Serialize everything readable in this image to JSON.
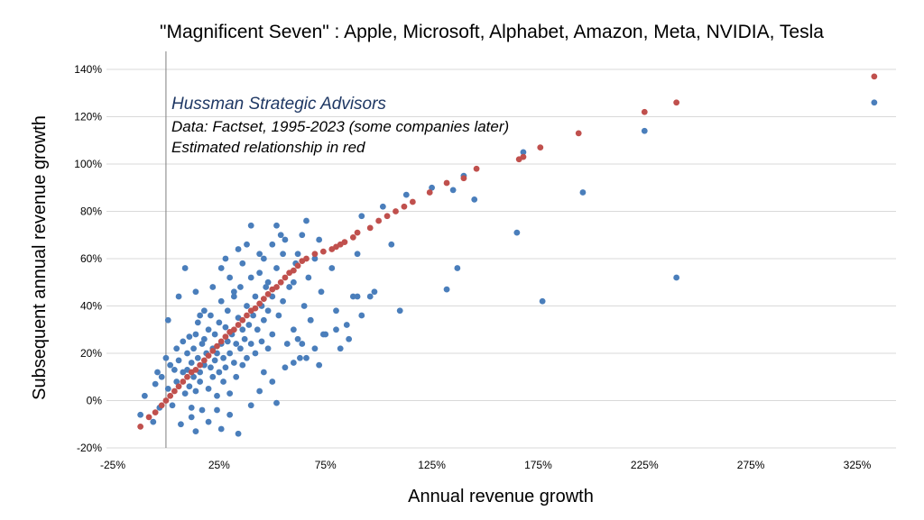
{
  "chart_data": {
    "type": "scatter",
    "title": "\"Magnificent Seven\" :  Apple, Microsoft, Alphabet, Amazon, Meta, NVIDIA, Tesla",
    "xlabel": "Annual revenue growth",
    "ylabel": "Subsequent annual revenue growth",
    "xlim": [
      -25,
      350
    ],
    "ylim": [
      -20,
      145
    ],
    "x_ticks": [
      -25,
      25,
      75,
      125,
      175,
      225,
      275,
      325
    ],
    "x_tick_labels": [
      "-25%",
      "25%",
      "75%",
      "125%",
      "175%",
      "225%",
      "275%",
      "325%"
    ],
    "y_ticks": [
      -20,
      0,
      20,
      40,
      60,
      80,
      100,
      120,
      140
    ],
    "y_tick_labels": [
      "-20%",
      "0%",
      "20%",
      "40%",
      "60%",
      "80%",
      "100%",
      "120%",
      "140%"
    ],
    "grid": "horizontal",
    "annotations": [
      "Hussman Strategic Advisors",
      "Data: Factset, 1995-2023 (some companies later)",
      "Estimated relationship in red"
    ],
    "colors": {
      "observed": "#4a7ebb",
      "estimated": "#c0504d"
    },
    "series": [
      {
        "points": [
          [
            -12,
            -6
          ],
          [
            -10,
            2
          ],
          [
            -6,
            -9
          ],
          [
            -5,
            7
          ],
          [
            -4,
            12
          ],
          [
            -3,
            -3
          ],
          [
            -2,
            10
          ],
          [
            0,
            18
          ],
          [
            1,
            5
          ],
          [
            2,
            15
          ],
          [
            3,
            -2
          ],
          [
            4,
            13
          ],
          [
            5,
            8
          ],
          [
            5,
            22
          ],
          [
            6,
            17
          ],
          [
            7,
            -10
          ],
          [
            8,
            12
          ],
          [
            8,
            25
          ],
          [
            9,
            3
          ],
          [
            10,
            20
          ],
          [
            10,
            13
          ],
          [
            11,
            6
          ],
          [
            11,
            27
          ],
          [
            12,
            16
          ],
          [
            12,
            -3
          ],
          [
            13,
            10
          ],
          [
            13,
            22
          ],
          [
            14,
            4
          ],
          [
            14,
            28
          ],
          [
            15,
            18
          ],
          [
            15,
            33
          ],
          [
            16,
            12
          ],
          [
            16,
            8
          ],
          [
            17,
            24
          ],
          [
            17,
            -4
          ],
          [
            18,
            15
          ],
          [
            18,
            26
          ],
          [
            19,
            20
          ],
          [
            20,
            30
          ],
          [
            20,
            5
          ],
          [
            21,
            14
          ],
          [
            21,
            36
          ],
          [
            22,
            22
          ],
          [
            22,
            10
          ],
          [
            23,
            17
          ],
          [
            23,
            28
          ],
          [
            24,
            2
          ],
          [
            24,
            20
          ],
          [
            25,
            33
          ],
          [
            25,
            12
          ],
          [
            26,
            24
          ],
          [
            26,
            42
          ],
          [
            27,
            18
          ],
          [
            27,
            8
          ],
          [
            28,
            31
          ],
          [
            28,
            14
          ],
          [
            29,
            25
          ],
          [
            29,
            38
          ],
          [
            30,
            20
          ],
          [
            30,
            3
          ],
          [
            31,
            28
          ],
          [
            32,
            16
          ],
          [
            32,
            44
          ],
          [
            33,
            24
          ],
          [
            33,
            10
          ],
          [
            34,
            35
          ],
          [
            35,
            22
          ],
          [
            35,
            48
          ],
          [
            36,
            30
          ],
          [
            36,
            15
          ],
          [
            37,
            26
          ],
          [
            38,
            40
          ],
          [
            38,
            18
          ],
          [
            39,
            32
          ],
          [
            40,
            24
          ],
          [
            40,
            52
          ],
          [
            41,
            36
          ],
          [
            42,
            20
          ],
          [
            42,
            44
          ],
          [
            43,
            30
          ],
          [
            44,
            54
          ],
          [
            45,
            40
          ],
          [
            45,
            25
          ],
          [
            46,
            34
          ],
          [
            47,
            48
          ],
          [
            48,
            22
          ],
          [
            48,
            38
          ],
          [
            50,
            44
          ],
          [
            50,
            28
          ],
          [
            52,
            56
          ],
          [
            53,
            36
          ],
          [
            55,
            42
          ],
          [
            55,
            62
          ],
          [
            57,
            24
          ],
          [
            58,
            48
          ],
          [
            60,
            30
          ],
          [
            61,
            58
          ],
          [
            63,
            18
          ],
          [
            64,
            70
          ],
          [
            65,
            40
          ],
          [
            67,
            52
          ],
          [
            68,
            34
          ],
          [
            70,
            60
          ],
          [
            72,
            68
          ],
          [
            73,
            46
          ],
          [
            75,
            28
          ],
          [
            78,
            56
          ],
          [
            80,
            38
          ],
          [
            85,
            32
          ],
          [
            88,
            44
          ],
          [
            90,
            62
          ],
          [
            92,
            78
          ],
          [
            102,
            82
          ],
          [
            106,
            66
          ],
          [
            110,
            38
          ],
          [
            113,
            87
          ],
          [
            125,
            90
          ],
          [
            132,
            47
          ],
          [
            135,
            89
          ],
          [
            137,
            56
          ],
          [
            140,
            95
          ],
          [
            145,
            85
          ],
          [
            165,
            71
          ],
          [
            168,
            105
          ],
          [
            177,
            42
          ],
          [
            196,
            88
          ],
          [
            225,
            114
          ],
          [
            240,
            52
          ],
          [
            333,
            126
          ],
          [
            1,
            34
          ],
          [
            6,
            44
          ],
          [
            9,
            56
          ],
          [
            14,
            46
          ],
          [
            16,
            36
          ],
          [
            18,
            38
          ],
          [
            22,
            48
          ],
          [
            26,
            56
          ],
          [
            28,
            60
          ],
          [
            30,
            52
          ],
          [
            32,
            46
          ],
          [
            34,
            64
          ],
          [
            36,
            58
          ],
          [
            38,
            66
          ],
          [
            40,
            74
          ],
          [
            44,
            62
          ],
          [
            46,
            60
          ],
          [
            48,
            50
          ],
          [
            50,
            66
          ],
          [
            52,
            74
          ],
          [
            54,
            70
          ],
          [
            56,
            68
          ],
          [
            60,
            50
          ],
          [
            62,
            62
          ],
          [
            66,
            76
          ],
          [
            14,
            -13
          ],
          [
            12,
            -7
          ],
          [
            20,
            -9
          ],
          [
            24,
            -4
          ],
          [
            26,
            -12
          ],
          [
            30,
            -6
          ],
          [
            34,
            -14
          ],
          [
            40,
            -2
          ],
          [
            44,
            4
          ],
          [
            46,
            12
          ],
          [
            50,
            8
          ],
          [
            52,
            -1
          ],
          [
            56,
            14
          ],
          [
            60,
            16
          ],
          [
            62,
            26
          ],
          [
            64,
            24
          ],
          [
            66,
            18
          ],
          [
            68,
            34
          ],
          [
            70,
            22
          ],
          [
            72,
            15
          ],
          [
            74,
            28
          ],
          [
            80,
            30
          ],
          [
            82,
            22
          ],
          [
            86,
            26
          ],
          [
            90,
            44
          ],
          [
            92,
            36
          ],
          [
            96,
            44
          ],
          [
            98,
            46
          ]
        ]
      },
      {
        "points": [
          [
            -12,
            -11
          ],
          [
            -8,
            -7
          ],
          [
            -5,
            -5
          ],
          [
            -2,
            -2
          ],
          [
            0,
            0
          ],
          [
            2,
            2
          ],
          [
            4,
            4
          ],
          [
            6,
            6
          ],
          [
            8,
            8
          ],
          [
            10,
            10
          ],
          [
            12,
            12
          ],
          [
            14,
            13
          ],
          [
            16,
            15
          ],
          [
            18,
            17
          ],
          [
            20,
            19
          ],
          [
            22,
            21
          ],
          [
            24,
            23
          ],
          [
            26,
            25
          ],
          [
            28,
            27
          ],
          [
            30,
            29
          ],
          [
            32,
            30
          ],
          [
            34,
            32
          ],
          [
            36,
            34
          ],
          [
            38,
            36
          ],
          [
            40,
            38
          ],
          [
            42,
            39
          ],
          [
            44,
            41
          ],
          [
            46,
            43
          ],
          [
            48,
            45
          ],
          [
            50,
            47
          ],
          [
            52,
            48
          ],
          [
            54,
            50
          ],
          [
            56,
            52
          ],
          [
            58,
            54
          ],
          [
            60,
            55
          ],
          [
            62,
            57
          ],
          [
            64,
            59
          ],
          [
            66,
            60
          ],
          [
            70,
            62
          ],
          [
            74,
            63
          ],
          [
            78,
            64
          ],
          [
            80,
            65
          ],
          [
            82,
            66
          ],
          [
            84,
            67
          ],
          [
            88,
            69
          ],
          [
            90,
            71
          ],
          [
            96,
            73
          ],
          [
            100,
            76
          ],
          [
            104,
            78
          ],
          [
            108,
            80
          ],
          [
            112,
            82
          ],
          [
            116,
            84
          ],
          [
            124,
            88
          ],
          [
            132,
            92
          ],
          [
            140,
            94
          ],
          [
            146,
            98
          ],
          [
            166,
            102
          ],
          [
            168,
            103
          ],
          [
            176,
            107
          ],
          [
            194,
            113
          ],
          [
            225,
            122
          ],
          [
            240,
            126
          ],
          [
            333,
            137
          ]
        ]
      }
    ]
  }
}
